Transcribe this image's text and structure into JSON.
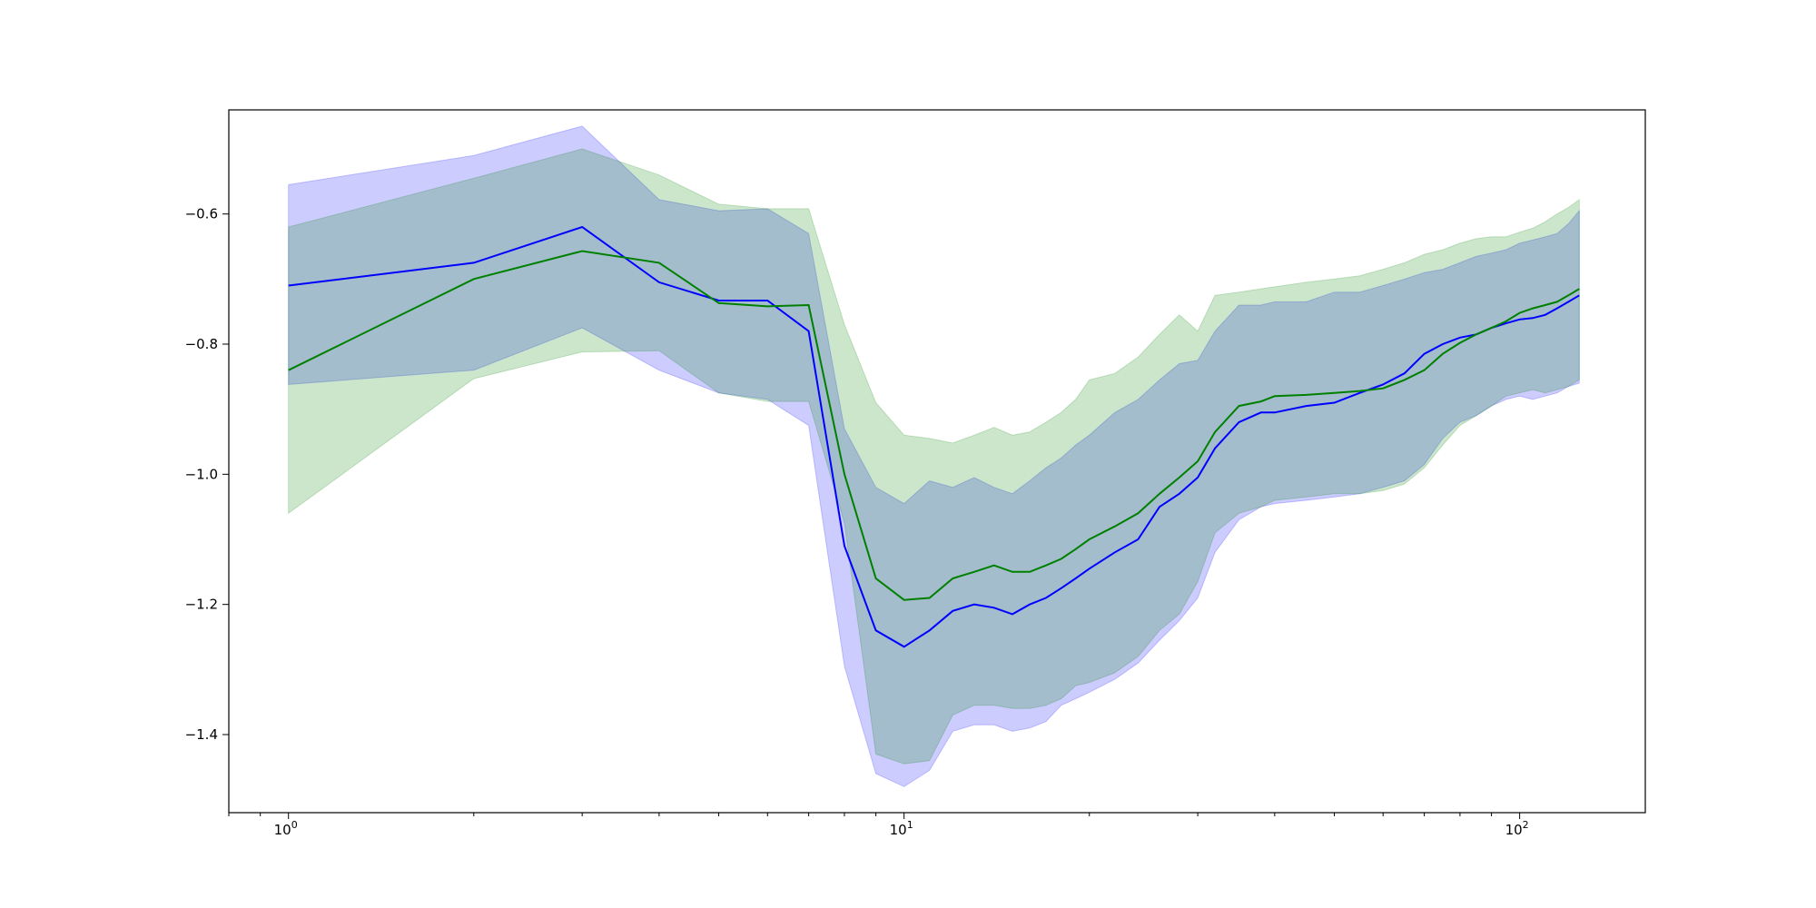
{
  "chart_data": {
    "type": "line",
    "title": "",
    "xlabel": "",
    "ylabel": "",
    "xscale": "log",
    "xlim": [
      0.8,
      160
    ],
    "ylim": [
      -1.52,
      -0.44
    ],
    "grid": false,
    "x_ticks": [
      {
        "value": 1,
        "base": "10",
        "exp": "0"
      },
      {
        "value": 10,
        "base": "10",
        "exp": "1"
      },
      {
        "value": 100,
        "base": "10",
        "exp": "2"
      }
    ],
    "y_ticks": [
      {
        "value": -0.6,
        "label": "−0.6"
      },
      {
        "value": -0.8,
        "label": "−0.8"
      },
      {
        "value": -1.0,
        "label": "−1.0"
      },
      {
        "value": -1.2,
        "label": "−1.2"
      },
      {
        "value": -1.4,
        "label": "−1.4"
      }
    ],
    "series": [
      {
        "color": "#0000ff",
        "band_color": "#0000ff",
        "band_opacity": 0.2,
        "x": [
          1,
          2,
          3,
          4,
          5,
          6,
          7,
          8,
          9,
          10,
          11,
          12,
          13,
          14,
          15,
          16,
          17,
          18,
          19,
          20,
          22,
          24,
          26,
          28,
          30,
          32,
          35,
          38,
          40,
          45,
          50,
          55,
          60,
          65,
          70,
          75,
          80,
          85,
          90,
          95,
          100,
          105,
          110,
          115,
          120,
          125
        ],
        "mean": [
          -0.71,
          -0.675,
          -0.62,
          -0.705,
          -0.733,
          -0.733,
          -0.78,
          -1.11,
          -1.24,
          -1.265,
          -1.24,
          -1.21,
          -1.2,
          -1.205,
          -1.215,
          -1.2,
          -1.19,
          -1.175,
          -1.16,
          -1.145,
          -1.12,
          -1.1,
          -1.05,
          -1.03,
          -1.005,
          -0.96,
          -0.92,
          -0.905,
          -0.905,
          -0.895,
          -0.89,
          -0.875,
          -0.862,
          -0.845,
          -0.815,
          -0.8,
          -0.79,
          -0.785,
          -0.775,
          -0.768,
          -0.762,
          -0.76,
          -0.755,
          -0.745,
          -0.735,
          -0.725
        ],
        "upper": [
          -0.555,
          -0.51,
          -0.465,
          -0.578,
          -0.595,
          -0.592,
          -0.63,
          -0.93,
          -1.02,
          -1.045,
          -1.01,
          -1.02,
          -1.005,
          -1.02,
          -1.03,
          -1.01,
          -0.99,
          -0.975,
          -0.955,
          -0.94,
          -0.905,
          -0.885,
          -0.855,
          -0.83,
          -0.825,
          -0.78,
          -0.74,
          -0.74,
          -0.735,
          -0.735,
          -0.72,
          -0.72,
          -0.71,
          -0.7,
          -0.69,
          -0.685,
          -0.675,
          -0.665,
          -0.66,
          -0.655,
          -0.645,
          -0.64,
          -0.635,
          -0.63,
          -0.615,
          -0.595
        ],
        "lower": [
          -0.862,
          -0.84,
          -0.775,
          -0.84,
          -0.875,
          -0.885,
          -0.925,
          -1.295,
          -1.46,
          -1.48,
          -1.455,
          -1.395,
          -1.385,
          -1.385,
          -1.395,
          -1.39,
          -1.38,
          -1.355,
          -1.345,
          -1.335,
          -1.315,
          -1.29,
          -1.255,
          -1.225,
          -1.19,
          -1.12,
          -1.07,
          -1.05,
          -1.045,
          -1.04,
          -1.035,
          -1.03,
          -1.02,
          -1.01,
          -0.985,
          -0.945,
          -0.92,
          -0.91,
          -0.895,
          -0.885,
          -0.88,
          -0.885,
          -0.88,
          -0.875,
          -0.865,
          -0.86
        ]
      },
      {
        "color": "#008000",
        "band_color": "#008000",
        "band_opacity": 0.2,
        "x": [
          1,
          2,
          3,
          4,
          5,
          6,
          7,
          8,
          9,
          10,
          11,
          12,
          13,
          14,
          15,
          16,
          17,
          18,
          19,
          20,
          22,
          24,
          26,
          28,
          30,
          32,
          35,
          38,
          40,
          45,
          50,
          55,
          60,
          65,
          70,
          75,
          80,
          85,
          90,
          95,
          100,
          105,
          110,
          115,
          120,
          125
        ],
        "mean": [
          -0.84,
          -0.7,
          -0.657,
          -0.675,
          -0.737,
          -0.742,
          -0.74,
          -1.0,
          -1.16,
          -1.193,
          -1.19,
          -1.16,
          -1.15,
          -1.14,
          -1.15,
          -1.15,
          -1.14,
          -1.13,
          -1.115,
          -1.1,
          -1.08,
          -1.06,
          -1.03,
          -1.005,
          -0.98,
          -0.935,
          -0.895,
          -0.888,
          -0.88,
          -0.878,
          -0.875,
          -0.872,
          -0.868,
          -0.855,
          -0.84,
          -0.815,
          -0.798,
          -0.785,
          -0.775,
          -0.765,
          -0.752,
          -0.745,
          -0.74,
          -0.735,
          -0.725,
          -0.715
        ],
        "upper": [
          -0.62,
          -0.545,
          -0.5,
          -0.54,
          -0.585,
          -0.592,
          -0.592,
          -0.77,
          -0.89,
          -0.94,
          -0.945,
          -0.952,
          -0.94,
          -0.928,
          -0.94,
          -0.935,
          -0.92,
          -0.905,
          -0.885,
          -0.855,
          -0.845,
          -0.82,
          -0.785,
          -0.755,
          -0.78,
          -0.725,
          -0.72,
          -0.715,
          -0.712,
          -0.705,
          -0.7,
          -0.695,
          -0.685,
          -0.675,
          -0.662,
          -0.655,
          -0.645,
          -0.638,
          -0.635,
          -0.635,
          -0.628,
          -0.622,
          -0.612,
          -0.6,
          -0.59,
          -0.578
        ],
        "lower": [
          -1.06,
          -0.853,
          -0.812,
          -0.81,
          -0.875,
          -0.888,
          -0.888,
          -1.075,
          -1.43,
          -1.445,
          -1.44,
          -1.37,
          -1.355,
          -1.355,
          -1.36,
          -1.36,
          -1.355,
          -1.345,
          -1.325,
          -1.32,
          -1.305,
          -1.28,
          -1.24,
          -1.215,
          -1.165,
          -1.09,
          -1.06,
          -1.05,
          -1.04,
          -1.035,
          -1.03,
          -1.03,
          -1.025,
          -1.015,
          -0.99,
          -0.955,
          -0.925,
          -0.91,
          -0.895,
          -0.88,
          -0.875,
          -0.87,
          -0.875,
          -0.87,
          -0.865,
          -0.855
        ]
      }
    ]
  }
}
